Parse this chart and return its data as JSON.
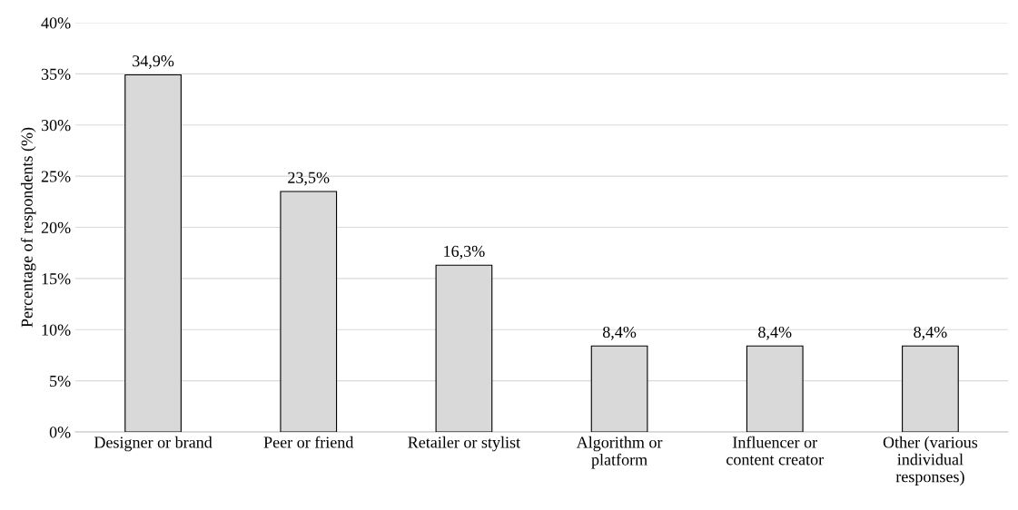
{
  "chart_data": {
    "type": "bar",
    "ylabel": "Percentage of respondents (%)",
    "categories": [
      "Designer or brand",
      "Peer or friend",
      "Retailer or stylist",
      "Algorithm or\nplatform",
      "Influencer or\ncontent creator",
      "Other (various\nindividual\nresponses)"
    ],
    "values": [
      34.9,
      23.5,
      16.3,
      8.4,
      8.4,
      8.4
    ],
    "value_labels": [
      "34,9%",
      "23,5%",
      "16,3%",
      "8,4%",
      "8,4%",
      "8,4%"
    ],
    "color": "#d9d9d9",
    "ylim": [
      0,
      40
    ],
    "yticks": [
      {
        "value": 0,
        "label": "0%"
      },
      {
        "value": 5,
        "label": "5%"
      },
      {
        "value": 10,
        "label": "10%"
      },
      {
        "value": 15,
        "label": "15%"
      },
      {
        "value": 20,
        "label": "20%"
      },
      {
        "value": 25,
        "label": "25%"
      },
      {
        "value": 30,
        "label": "30%"
      },
      {
        "value": 35,
        "label": "35%"
      },
      {
        "value": 40,
        "label": "40%"
      }
    ],
    "grid": "y",
    "legend": false
  }
}
